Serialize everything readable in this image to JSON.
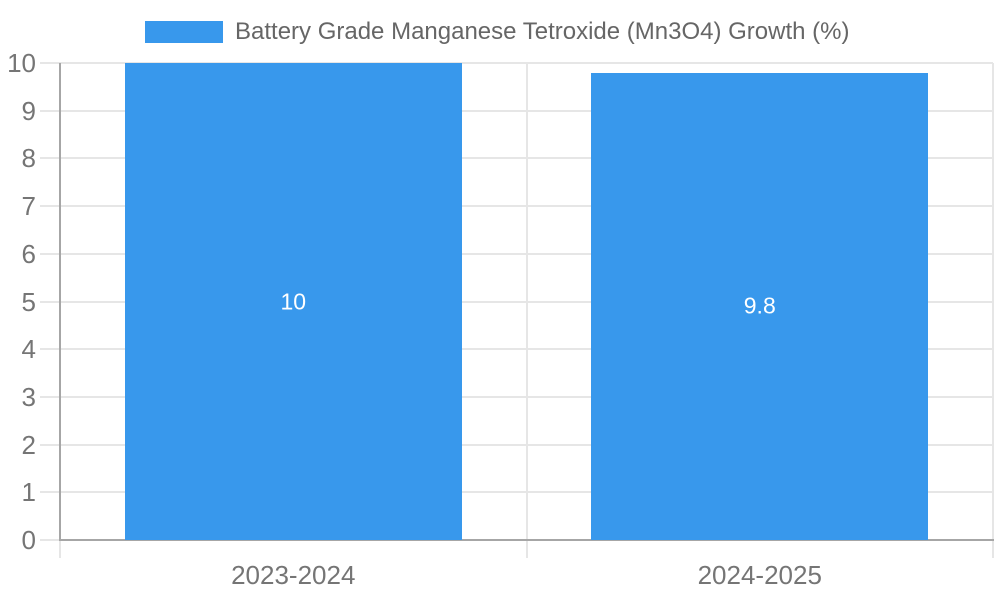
{
  "chart_data": {
    "type": "bar",
    "title": "",
    "categories": [
      "2023-2024",
      "2024-2025"
    ],
    "series": [
      {
        "name": "Battery Grade Manganese Tetroxide (Mn3O4) Growth (%)",
        "values": [
          10,
          9.8
        ]
      }
    ],
    "data_labels": [
      "10",
      "9.8"
    ],
    "ylim": [
      0,
      10
    ],
    "yticks": [
      "0",
      "1",
      "2",
      "3",
      "4",
      "5",
      "6",
      "7",
      "8",
      "9",
      "10"
    ],
    "grid": true,
    "legend_position": "top-center",
    "colors": {
      "bar": "#3898ec",
      "grid": "#e6e6e6",
      "axis": "#a6a6a6",
      "tick_label": "#757575",
      "legend_label": "#666666",
      "data_label": "#ffffff",
      "background": "#ffffff"
    }
  }
}
